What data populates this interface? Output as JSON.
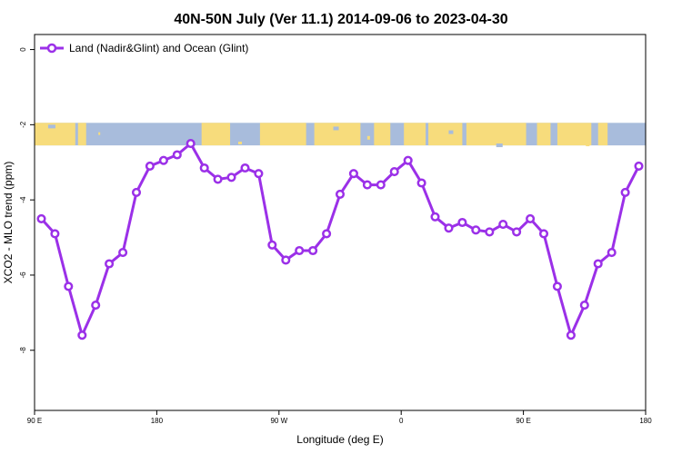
{
  "chart_data": {
    "type": "line",
    "title": "40N-50N July (Ver 11.1)   2014-09-06 to 2023-04-30",
    "xlabel": "Longitude (deg E)",
    "ylabel": "XCO2 - MLO trend (ppm)",
    "xlim": [
      90,
      540
    ],
    "ylim": [
      -9.6,
      0.4
    ],
    "x_ticks": [
      {
        "value": 90,
        "label": "90 E"
      },
      {
        "value": 180,
        "label": "180"
      },
      {
        "value": 270,
        "label": "90 W"
      },
      {
        "value": 360,
        "label": "0"
      },
      {
        "value": 450,
        "label": "90 E"
      },
      {
        "value": 540,
        "label": "180"
      }
    ],
    "y_ticks": [
      {
        "value": 0,
        "label": "0"
      },
      {
        "value": -2,
        "label": "-2"
      },
      {
        "value": -4,
        "label": "-4"
      },
      {
        "value": -6,
        "label": "-6"
      },
      {
        "value": -8,
        "label": "-8"
      }
    ],
    "legend_position": "top-left",
    "series": [
      {
        "name": "Land (Nadir&Glint) and Ocean (Glint)",
        "color": "#9b30e8",
        "x": [
          95,
          105,
          115,
          125,
          135,
          145,
          155,
          165,
          175,
          185,
          195,
          205,
          215,
          225,
          235,
          245,
          255,
          265,
          275,
          285,
          295,
          305,
          315,
          325,
          335,
          345,
          355,
          365,
          375,
          385,
          395,
          405,
          415,
          425,
          435,
          445,
          455,
          465,
          475,
          485,
          495,
          505,
          515,
          525,
          535
        ],
        "y": [
          -4.5,
          -4.9,
          -6.3,
          -7.6,
          -6.8,
          -5.7,
          -5.4,
          -3.8,
          -3.1,
          -2.95,
          -2.8,
          -2.5,
          -3.15,
          -3.45,
          -3.4,
          -3.15,
          -3.3,
          -5.2,
          -5.6,
          -5.35,
          -5.35,
          -4.9,
          -3.85,
          -3.3,
          -3.6,
          -3.6,
          -3.25,
          -2.95,
          -3.55,
          -4.45,
          -4.75,
          -4.6,
          -4.8,
          -4.85,
          -4.65,
          -4.85,
          -4.5,
          -4.9,
          -6.3,
          -7.6,
          -6.8,
          -5.7,
          -5.4,
          -3.8,
          -3.1
        ]
      }
    ],
    "land_strip": {
      "y_range": [
        -2.55,
        -1.95
      ],
      "land_color": "#f7dc7c",
      "ocean_color": "#a8bcdc"
    }
  }
}
